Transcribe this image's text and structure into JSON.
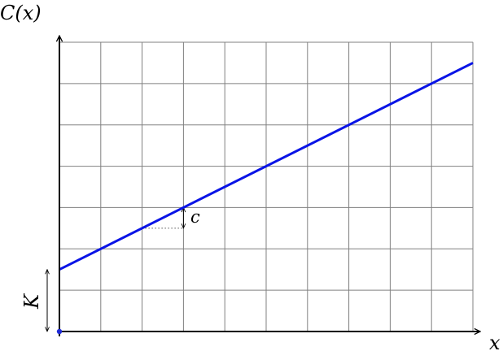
{
  "chart_data": {
    "type": "line",
    "title": "",
    "xlabel": "x",
    "ylabel": "C(x)",
    "xlim": [
      0,
      10
    ],
    "ylim": [
      0,
      7
    ],
    "grid": true,
    "series": [
      {
        "x": [
          0,
          10
        ],
        "y": [
          1.5,
          6.5
        ],
        "color": "#0a14e6"
      }
    ],
    "annotations": {
      "intercept_label": "K",
      "intercept_value": 1.5,
      "slope_label": "c",
      "slope_value": 0.5,
      "slope_step_at_x": [
        2,
        3
      ]
    },
    "origin_point": [
      0,
      0
    ],
    "colors": {
      "line": "#0a14e6",
      "grid": "#808080",
      "axis": "#000000",
      "origin_point": "#1f2ad6"
    }
  }
}
